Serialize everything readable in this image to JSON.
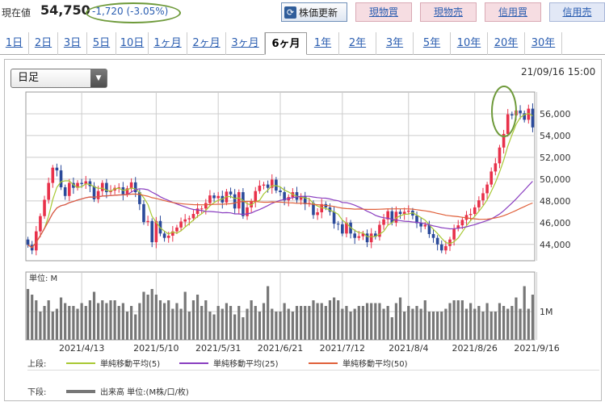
{
  "header": {
    "price_label": "現在値",
    "price_value": "54,750",
    "price_change": "-1,720 (-3.05%)",
    "refresh_label": "株価更新",
    "trade_buttons": [
      "現物買",
      "現物売",
      "信用買",
      "信用売"
    ]
  },
  "tabs": [
    "1日",
    "2日",
    "3日",
    "5日",
    "10日",
    "1ヶ月",
    "2ヶ月",
    "3ヶ月",
    "6ヶ月",
    "1年",
    "2年",
    "3年",
    "5年",
    "10年",
    "20年",
    "30年"
  ],
  "active_tab": "6ヶ月",
  "chart_controls": {
    "period_select": "日足",
    "datetime": "21/09/16 15:00"
  },
  "legend": {
    "upper_label": "上段:",
    "lower_label": "下段:",
    "ma5": "単純移動平均(5)",
    "ma25": "単純移動平均(25)",
    "ma50": "単純移動平均(50)",
    "volume": "出来高 単位:(M株/口/枚)"
  },
  "colors": {
    "up": "#e8314a",
    "down": "#2b4a9a",
    "ma5": "#a8c834",
    "ma25": "#8a3ec0",
    "ma50": "#e0603a",
    "volume": "#777777",
    "highlight": "#6e9a3a"
  },
  "chart_data": [
    {
      "type": "candlestick",
      "ylim": [
        42500,
        58000
      ],
      "y_ticks": [
        44000,
        46000,
        48000,
        50000,
        52000,
        54000,
        56000
      ],
      "y_tick_labels": [
        "44,000",
        "46,000",
        "48,000",
        "50,000",
        "52,000",
        "54,000",
        "56,000"
      ],
      "x_tick_labels": [
        "2021/4/13",
        "2021/5/10",
        "2021/5/31",
        "2021/6/21",
        "2021/7/12",
        "2021/8/4",
        "2021/8/26",
        "2021/9/16"
      ],
      "x_tick_indices": [
        13,
        31,
        46,
        61,
        76,
        92,
        108,
        123
      ],
      "grid": true,
      "close": [
        43950,
        43450,
        45200,
        46600,
        48100,
        49650,
        51050,
        50800,
        49250,
        48450,
        49650,
        49200,
        49650,
        49550,
        49800,
        49350,
        48150,
        48900,
        49650,
        48800,
        48950,
        49200,
        49250,
        48600,
        49150,
        49700,
        48800,
        47700,
        46050,
        46150,
        44200,
        46150,
        45000,
        44600,
        44800,
        45200,
        45550,
        46100,
        46300,
        46400,
        46800,
        47300,
        47300,
        47800,
        48500,
        48250,
        48450,
        47850,
        48850,
        48600,
        47300,
        48800,
        46600,
        47400,
        47950,
        48900,
        49400,
        49500,
        49200,
        49950,
        48950,
        48800,
        48050,
        48350,
        48800,
        48100,
        48450,
        47700,
        47800,
        46700,
        46950,
        47700,
        47400,
        47000,
        45900,
        45850,
        45000,
        46000,
        45000,
        44600,
        44750,
        45000,
        44200,
        45000,
        44700,
        45800,
        46300,
        47050,
        46000,
        47000,
        46800,
        47000,
        47100,
        46650,
        45950,
        45650,
        45800,
        44950,
        44600,
        44000,
        43450,
        43850,
        44450,
        45450,
        45750,
        46250,
        46700,
        46800,
        47400,
        48050,
        48700,
        49500,
        50700,
        51450,
        52900,
        54150,
        55950,
        55850,
        56300,
        56050,
        55450,
        56470,
        54750
      ],
      "volume": [
        1.8,
        1.6,
        1.4,
        1.0,
        1.2,
        1.4,
        1.0,
        1.1,
        1.5,
        1.3,
        1.2,
        1.2,
        1.1,
        1.3,
        1.2,
        1.4,
        1.7,
        1.3,
        1.4,
        1.3,
        1.4,
        1.4,
        1.2,
        1.3,
        1.0,
        1.2,
        0.9,
        1.3,
        1.7,
        1.6,
        1.8,
        1.6,
        1.4,
        1.3,
        1.4,
        1.1,
        1.3,
        1.1,
        1.7,
        1.0,
        1.4,
        1.6,
        1.2,
        1.4,
        1.0,
        0.9,
        1.2,
        1.1,
        1.3,
        1.2,
        0.9,
        1.2,
        0.8,
        1.1,
        1.4,
        1.2,
        1.0,
        1.3,
        1.9,
        1.1,
        1.0,
        1.0,
        1.3,
        1.1,
        1.0,
        1.2,
        1.2,
        1.2,
        1.2,
        1.4,
        1.3,
        1.3,
        1.2,
        1.4,
        1.5,
        1.4,
        1.1,
        1.2,
        1.0,
        1.1,
        1.2,
        1.2,
        1.3,
        1.3,
        1.3,
        1.3,
        1.1,
        1.2,
        0.8,
        1.3,
        1.5,
        1.0,
        1.2,
        1.1,
        1.2,
        1.1,
        1.4,
        1.0,
        1.0,
        1.0,
        1.0,
        1.1,
        1.3,
        1.4,
        1.4,
        1.4,
        1.1,
        1.3,
        1.1,
        1.2,
        1.0,
        1.3,
        1.0,
        1.0,
        1.3,
        1.2,
        1.1,
        1.2,
        1.5,
        1.1,
        1.9,
        1.1,
        1.6
      ],
      "volume_unit_label": "単位: M",
      "volume_tick_label": "1M",
      "series": [
        {
          "name": "単純移動平均(5)"
        },
        {
          "name": "単純移動平均(25)"
        },
        {
          "name": "単純移動平均(50)"
        }
      ]
    }
  ]
}
